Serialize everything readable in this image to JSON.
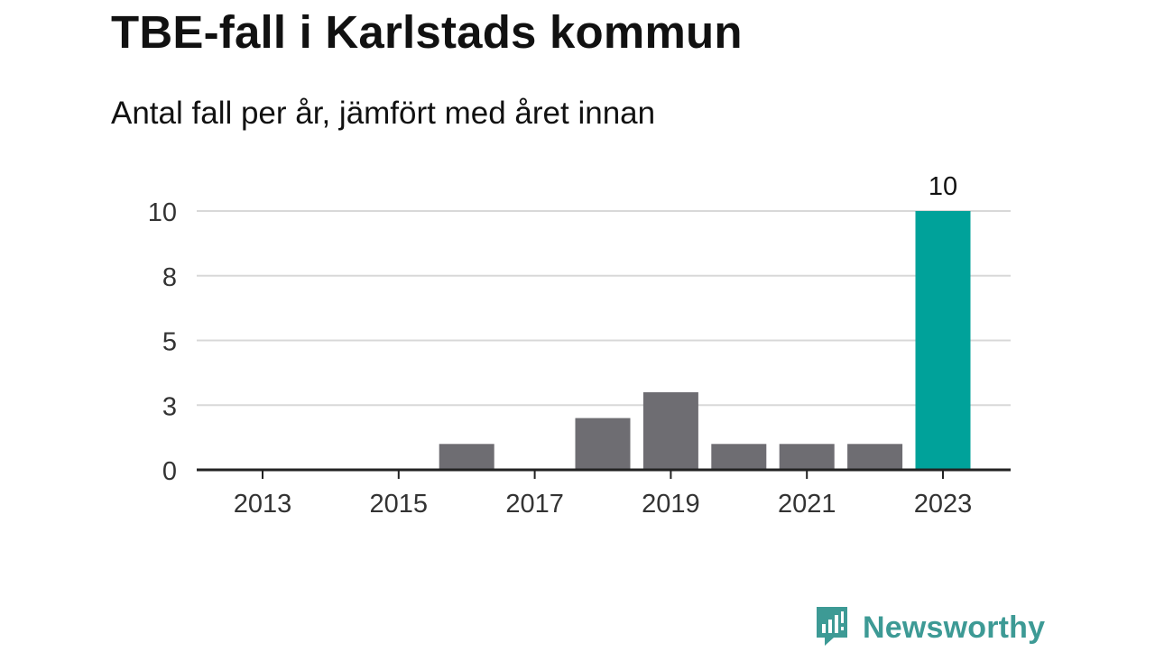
{
  "header": {
    "title": "TBE-fall i Karlstads kommun",
    "subtitle": "Antal fall per år, jämfört med året innan"
  },
  "chart_data": {
    "type": "bar",
    "title": "TBE-fall i Karlstads kommun",
    "subtitle": "Antal fall per år, jämfört med året innan",
    "xlabel": "",
    "ylabel": "",
    "categories": [
      "2013",
      "2014",
      "2015",
      "2016",
      "2017",
      "2018",
      "2019",
      "2020",
      "2021",
      "2022",
      "2023"
    ],
    "values": [
      0,
      0,
      0,
      1,
      0,
      2,
      3,
      1,
      1,
      1,
      10
    ],
    "highlight_index": 10,
    "data_labels": [
      {
        "index": 10,
        "text": "10"
      }
    ],
    "x_tick_labels": [
      "2013",
      "2015",
      "2017",
      "2019",
      "2021",
      "2023"
    ],
    "y_ticks": [
      {
        "value": 0,
        "label": "0"
      },
      {
        "value": 2.5,
        "label": "3"
      },
      {
        "value": 5,
        "label": "5"
      },
      {
        "value": 7.5,
        "label": "8"
      },
      {
        "value": 10,
        "label": "10"
      }
    ],
    "ylim": [
      0,
      10
    ],
    "grid": true,
    "colors": {
      "default": "#6e6d72",
      "highlight": "#00a29a",
      "grid": "#d8d8d8",
      "axis": "#222222"
    }
  },
  "brand": {
    "name": "Newsworthy",
    "icon": "newsworthy-logo-icon",
    "color": "#3d9a95"
  }
}
